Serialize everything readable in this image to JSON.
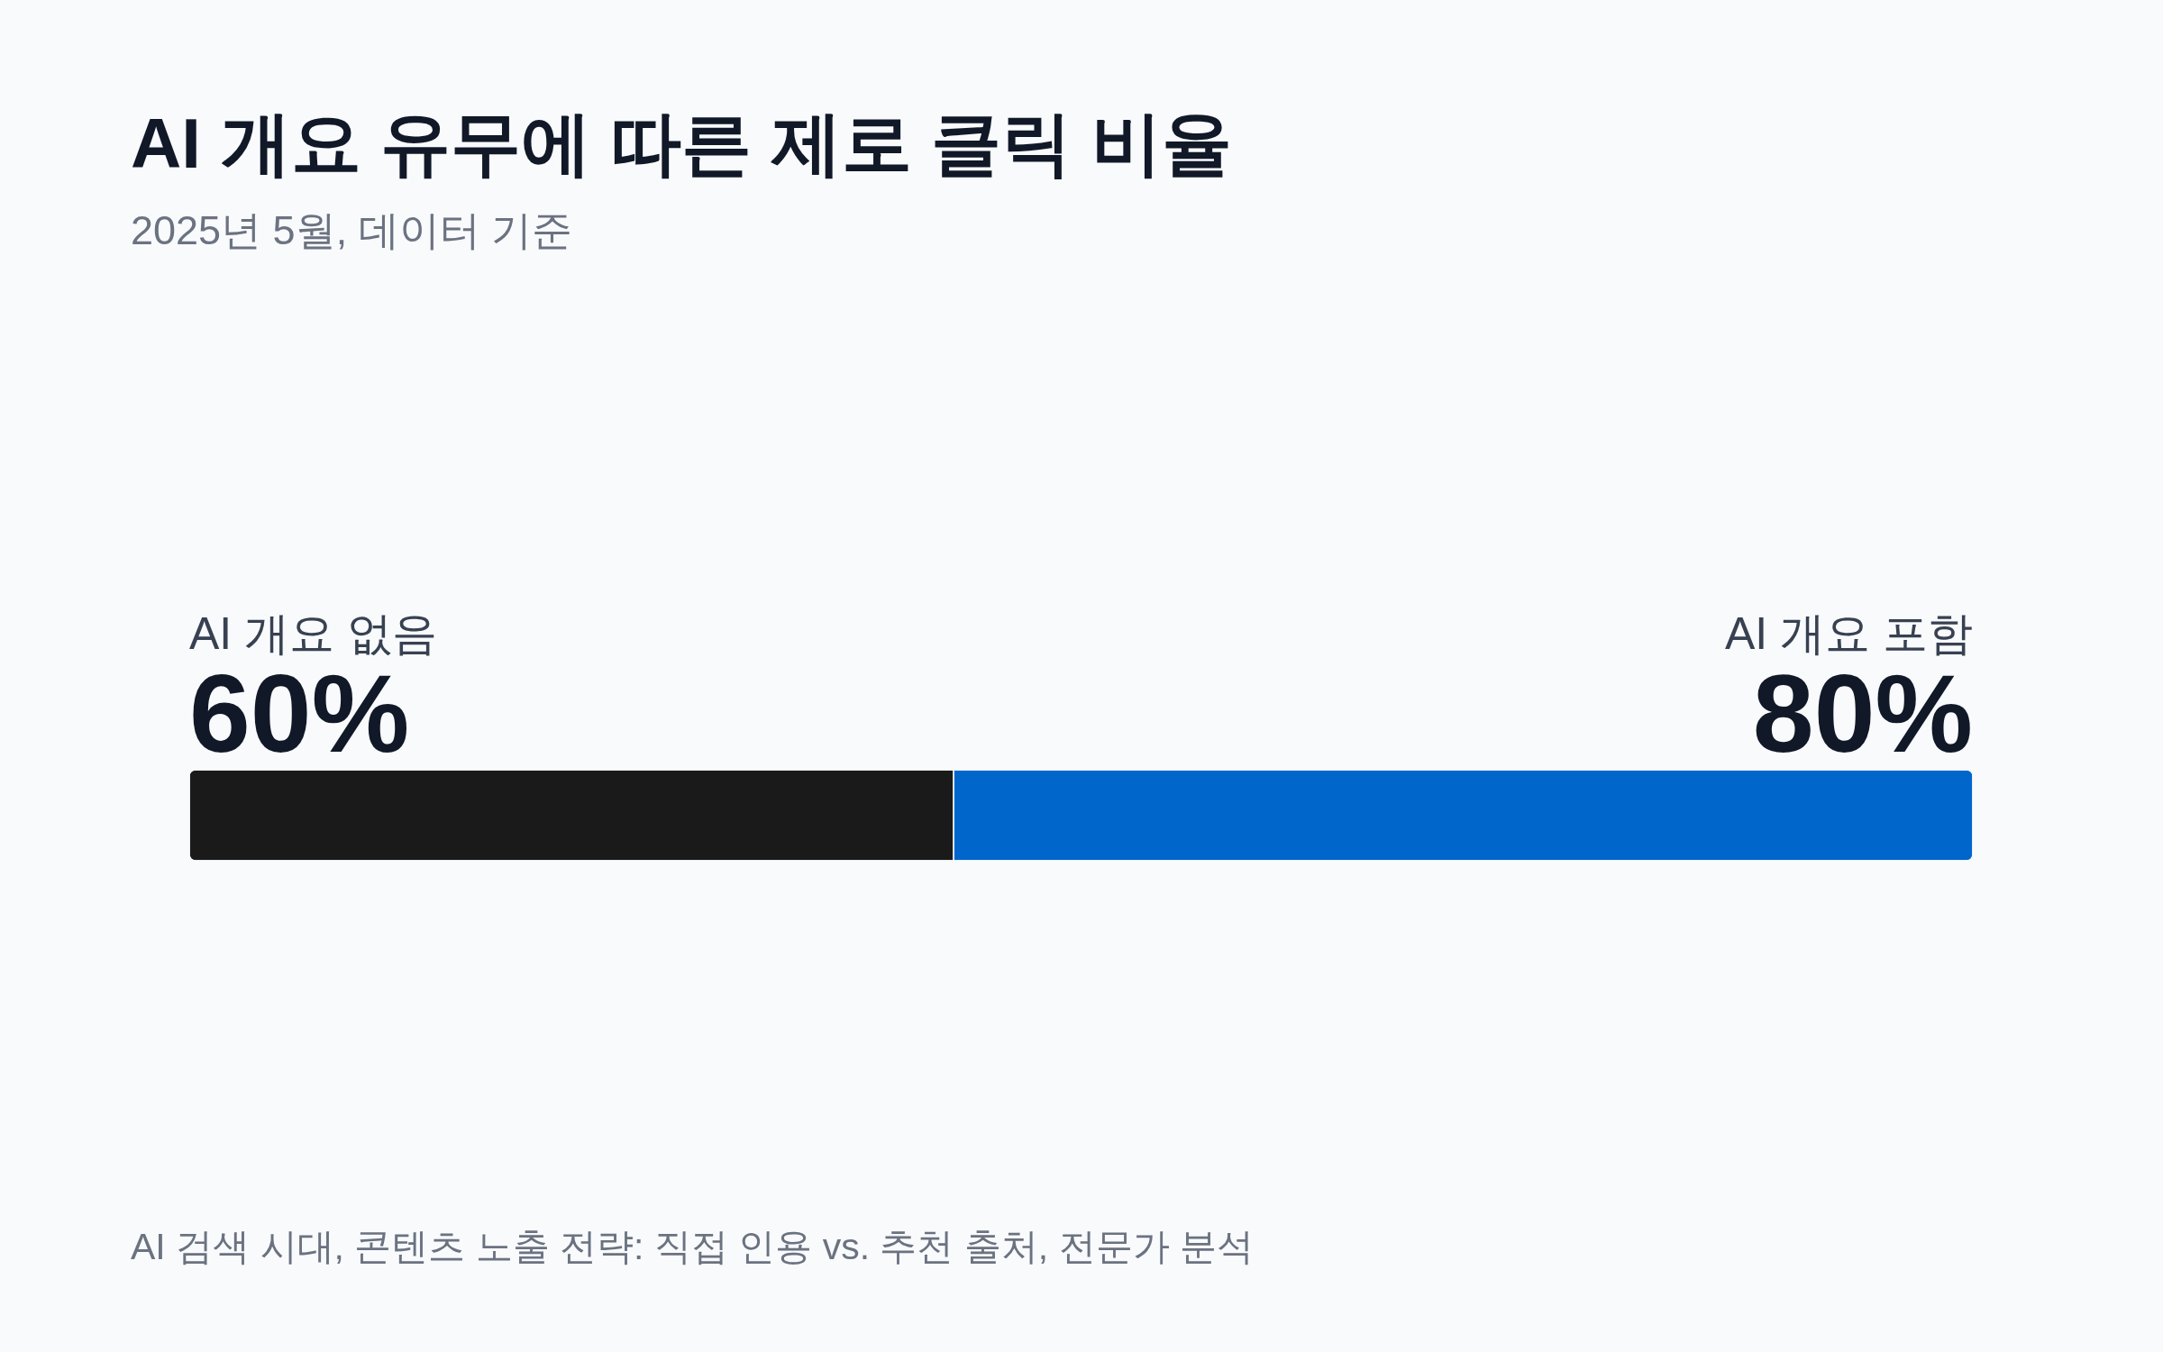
{
  "chart_data": {
    "type": "bar",
    "orientation": "horizontal",
    "stacked": true,
    "title": "AI 개요 유무에 따른 제로 클릭 비율",
    "subtitle": "2025년 5월, 데이터 기준",
    "categories": [
      null
    ],
    "series": [
      {
        "name": "AI 개요 없음",
        "color": "#1a1a1a",
        "values": [
          60
        ],
        "value_labels": [
          "60%"
        ]
      },
      {
        "name": "AI 개요 포함",
        "color": "#0066cc",
        "values": [
          80
        ],
        "value_labels": [
          "80%"
        ]
      }
    ],
    "annotations": [
      "AI 검색 시대, 콘텐츠 노출 전략: 직접 인용 vs. 추천 출처, 전문가 분석"
    ],
    "tick_labels": false
  }
}
